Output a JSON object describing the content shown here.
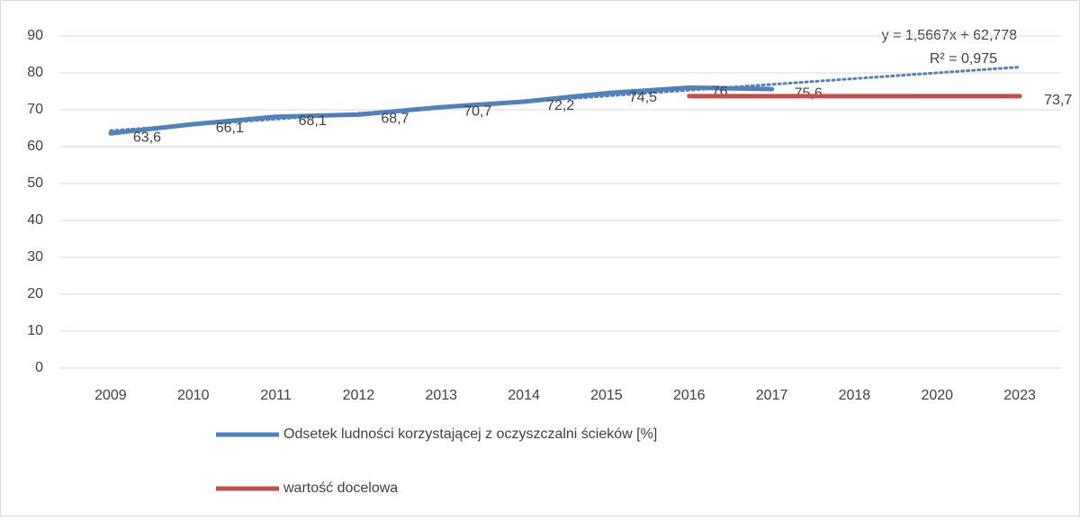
{
  "chart_data": {
    "type": "line",
    "categories": [
      "2009",
      "2010",
      "2011",
      "2012",
      "2013",
      "2014",
      "2015",
      "2016",
      "2017",
      "2018",
      "2020",
      "2023"
    ],
    "series": [
      {
        "name": "Odsetek ludności korzystającej z oczyszczalni ścieków [%]",
        "color": "#4f81bd",
        "values": [
          63.6,
          66.1,
          68.1,
          68.7,
          70.7,
          72.2,
          74.5,
          76,
          75.6,
          null,
          null,
          null
        ],
        "value_labels": [
          "63,6",
          "66,1",
          "68,1",
          "68,7",
          "70,7",
          "72,2",
          "74,5",
          "76",
          "75,6",
          null,
          null,
          null
        ]
      },
      {
        "name": "wartość docelowa",
        "color": "#c0504d",
        "values": [
          null,
          null,
          null,
          null,
          null,
          null,
          null,
          73.7,
          73.7,
          73.7,
          73.7,
          73.7
        ],
        "value_labels": [
          null,
          null,
          null,
          null,
          null,
          null,
          null,
          null,
          null,
          null,
          null,
          "73,7"
        ]
      }
    ],
    "trendline": {
      "slope": 1.5667,
      "intercept": 62.778,
      "color": "#4f81bd",
      "equation": "y = 1,5667x + 62,778",
      "r2": "R² = 0,975"
    },
    "ylim": [
      0,
      90
    ],
    "yticks": [
      0,
      10,
      20,
      30,
      40,
      50,
      60,
      70,
      80,
      90
    ],
    "grid": true,
    "legend": "bottom"
  }
}
